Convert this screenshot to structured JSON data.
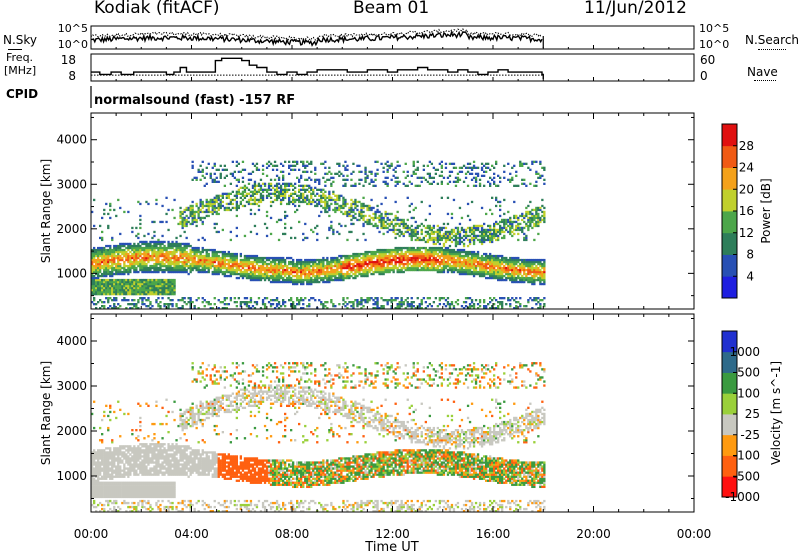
{
  "header": {
    "radar": "Kodiak (fitACF)",
    "beam": "Beam 01",
    "date": "11/Jun/2012"
  },
  "panels": {
    "nsky_label": "N.Sky",
    "nsearch_label": "N.Search",
    "freq_label_1": "Freq.",
    "freq_label_2": "[MHz]",
    "nave_label": "Nave",
    "cpid_label": "CPID",
    "cpid_text": "normalsound (fast) -157 RF"
  },
  "colors": {
    "power": [
      "#1f1fe0",
      "#2850b4",
      "#2e7e5a",
      "#4ca64a",
      "#c0d02c",
      "#f4a11a",
      "#f05a14",
      "#e01010"
    ],
    "velocity": [
      "#ff1010",
      "#ff6010",
      "#ff9a10",
      "#c8c8c0",
      "#9ad03a",
      "#3a9a40",
      "#2e6a8a",
      "#2030d0"
    ]
  },
  "chart_data": [
    {
      "type": "line",
      "title": "",
      "series": [
        {
          "name": "N.Sky",
          "style": "solid"
        },
        {
          "name": "N.Search",
          "style": "dotted"
        }
      ],
      "ylim_log10": [
        0,
        5
      ],
      "y_tick_labels": [
        "10^5",
        "10^0"
      ],
      "y_tick_labels_right": [
        "10^5",
        "10^0"
      ]
    },
    {
      "type": "line",
      "series": [
        {
          "name": "Freq. [MHz]",
          "style": "solid",
          "x_hours": [
            0,
            0.35,
            0.8,
            1.2,
            1.7,
            2.4,
            3.0,
            3.3,
            3.55,
            3.8,
            4.4,
            4.95,
            5.2,
            5.6,
            6.0,
            6.3,
            6.6,
            7.0,
            7.4,
            7.8,
            8.2,
            8.6,
            9.0,
            9.6,
            10.2,
            10.6,
            11.0,
            11.4,
            11.8,
            12.2,
            12.6,
            13.0,
            13.4,
            13.8,
            14.2,
            14.6,
            15.0,
            15.4,
            15.8,
            16.2,
            16.6,
            17.0,
            17.4,
            17.95
          ],
          "values_mhz": [
            11,
            10,
            11,
            10,
            11,
            11,
            10,
            11,
            13,
            11,
            11,
            16,
            17,
            17,
            16,
            14,
            13,
            11,
            10,
            11,
            10,
            11,
            12,
            12,
            11,
            11,
            12,
            12,
            11,
            12,
            12,
            13,
            12,
            12,
            11,
            12,
            11,
            10,
            11,
            12,
            11,
            11,
            11,
            10
          ]
        },
        {
          "name": "Nave",
          "style": "dotted",
          "value": 10
        }
      ],
      "y_tick_labels": [
        "18",
        "8"
      ],
      "y_tick_labels_right": [
        "60",
        "0"
      ],
      "ylim": [
        8,
        18
      ],
      "ylim_right": [
        0,
        60
      ]
    },
    {
      "type": "heatmap",
      "quantity": "Power",
      "ylabel": "Slant Range [km]",
      "colorbar_label": "Power [dB]",
      "colorbar_ticks": [
        "28",
        "24",
        "20",
        "16",
        "12",
        "8",
        "4"
      ],
      "colorbar_range": [
        0,
        32
      ],
      "y_ticks": [
        "1000",
        "2000",
        "3000",
        "4000"
      ],
      "ylim": [
        200,
        4600
      ],
      "data_end_hour": 18
    },
    {
      "type": "heatmap",
      "quantity": "Velocity",
      "ylabel": "Slant Range [km]",
      "colorbar_label": "Velocity [m s^-1]",
      "colorbar_ticks": [
        "1000",
        "500",
        "100",
        "25",
        "-25",
        "-100",
        "-500",
        "-1000"
      ],
      "y_ticks": [
        "1000",
        "2000",
        "3000",
        "4000"
      ],
      "ylim": [
        200,
        4600
      ],
      "xlabel": "Time UT",
      "x_ticks": [
        "00:00",
        "04:00",
        "08:00",
        "12:00",
        "16:00",
        "20:00",
        "00:00"
      ],
      "xlim_hours": [
        0,
        24
      ],
      "data_end_hour": 18
    }
  ]
}
